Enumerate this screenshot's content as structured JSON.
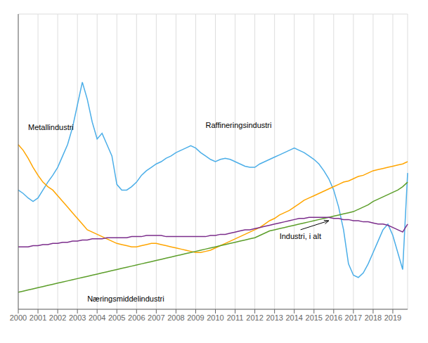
{
  "chart_data": {
    "type": "line",
    "categories": [
      "2000",
      null,
      null,
      null,
      "2001",
      null,
      null,
      null,
      "2002",
      null,
      null,
      null,
      "2003",
      null,
      null,
      null,
      "2004",
      null,
      null,
      null,
      "2005",
      null,
      null,
      null,
      "2006",
      null,
      null,
      null,
      "2007",
      null,
      null,
      null,
      "2008",
      null,
      null,
      null,
      "2009",
      null,
      null,
      null,
      "2010",
      null,
      null,
      null,
      "2011",
      null,
      null,
      null,
      "2012",
      null,
      null,
      null,
      "2013",
      null,
      null,
      null,
      "2014",
      null,
      null,
      null,
      "2015",
      null,
      null,
      null,
      "2016",
      null,
      null,
      null,
      "2017",
      null,
      null,
      null,
      "2018",
      null,
      null,
      null,
      "2019",
      null,
      null,
      null
    ],
    "series": [
      {
        "name": "Raffineringsindustri",
        "color": "#4BAEE8",
        "values": [
          155,
          152,
          148,
          145,
          148,
          155,
          162,
          168,
          175,
          185,
          195,
          210,
          230,
          250,
          235,
          215,
          200,
          205,
          195,
          185,
          160,
          155,
          155,
          158,
          162,
          168,
          172,
          175,
          178,
          180,
          183,
          185,
          188,
          190,
          192,
          194,
          192,
          188,
          185,
          182,
          180,
          182,
          183,
          182,
          180,
          178,
          176,
          175,
          175,
          178,
          180,
          182,
          184,
          186,
          188,
          190,
          192,
          190,
          188,
          185,
          182,
          178,
          172,
          165,
          155,
          140,
          120,
          90,
          80,
          78,
          82,
          90,
          100,
          110,
          120,
          125,
          115,
          100,
          85,
          170
        ]
      },
      {
        "name": "Metallindustri",
        "color": "#FFA500",
        "values": [
          195,
          190,
          183,
          175,
          168,
          162,
          158,
          155,
          150,
          145,
          140,
          135,
          130,
          125,
          120,
          118,
          116,
          114,
          112,
          110,
          108,
          107,
          106,
          105,
          105,
          106,
          107,
          108,
          108,
          107,
          106,
          105,
          104,
          103,
          102,
          101,
          100,
          100,
          101,
          102,
          104,
          106,
          108,
          110,
          112,
          114,
          116,
          118,
          120,
          122,
          125,
          128,
          130,
          133,
          135,
          137,
          140,
          143,
          146,
          148,
          150,
          152,
          154,
          156,
          158,
          160,
          162,
          163,
          165,
          167,
          168,
          170,
          172,
          173,
          174,
          175,
          176,
          177,
          178,
          180
        ]
      },
      {
        "name": "Næringsmiddelindustri",
        "color": "#5C9E2A",
        "values": [
          65,
          66,
          67,
          68,
          69,
          70,
          71,
          72,
          73,
          74,
          75,
          76,
          77,
          78,
          79,
          80,
          81,
          82,
          83,
          84,
          85,
          86,
          87,
          88,
          89,
          90,
          91,
          92,
          93,
          94,
          95,
          96,
          97,
          98,
          99,
          100,
          101,
          102,
          103,
          104,
          105,
          106,
          107,
          108,
          109,
          110,
          111,
          112,
          113,
          115,
          117,
          119,
          120,
          121,
          122,
          123,
          124,
          125,
          126,
          127,
          128,
          129,
          130,
          131,
          132,
          133,
          134,
          135,
          136,
          138,
          140,
          142,
          145,
          147,
          149,
          151,
          153,
          155,
          158,
          162
        ]
      },
      {
        "name": "Industri, i alt",
        "color": "#7B2D8B",
        "values": [
          105,
          105,
          105,
          106,
          106,
          107,
          107,
          108,
          108,
          109,
          109,
          110,
          110,
          111,
          111,
          112,
          112,
          112,
          113,
          113,
          113,
          113,
          113,
          114,
          114,
          114,
          115,
          115,
          115,
          115,
          114,
          114,
          114,
          114,
          114,
          114,
          114,
          114,
          114,
          115,
          115,
          116,
          116,
          117,
          118,
          119,
          120,
          120,
          121,
          122,
          123,
          124,
          125,
          126,
          127,
          128,
          129,
          130,
          130,
          131,
          131,
          131,
          131,
          131,
          130,
          130,
          129,
          129,
          128,
          128,
          127,
          127,
          126,
          125,
          125,
          124,
          122,
          120,
          118,
          125
        ]
      }
    ],
    "ylim": [
      50,
      310
    ],
    "yticks": [
      50,
      100,
      150,
      200,
      250,
      300
    ],
    "grid": true,
    "tick_labels": "x",
    "annotations": [
      {
        "text": "Raffineringsindustri",
        "x": 38,
        "y": 210
      },
      {
        "text": "Metallindustri",
        "x": 2,
        "y": 208
      },
      {
        "text": "Næringsmiddelindustri",
        "x": 14,
        "y": 57
      },
      {
        "text": "Industri, i alt",
        "x": 53,
        "y": 112,
        "arrow_to": [
          63,
          128
        ]
      }
    ]
  }
}
